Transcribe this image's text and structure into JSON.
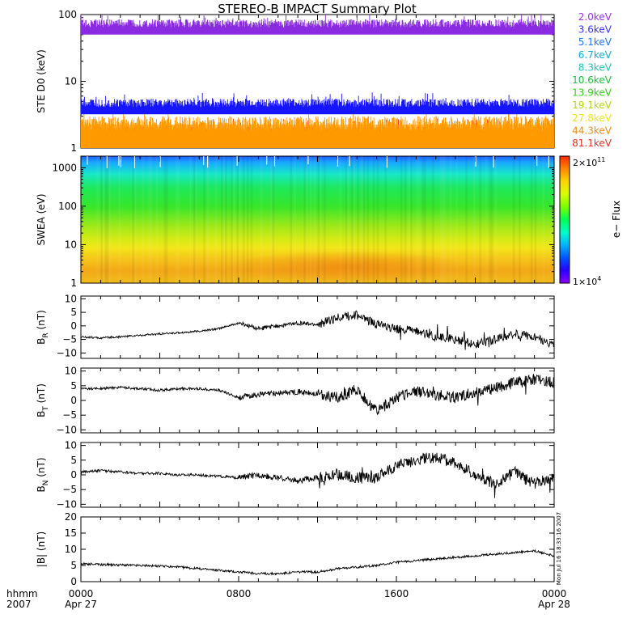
{
  "title": "STEREO-B IMPACT Summary Plot",
  "stamp": "Mon Jul 16 18:33:16 2007",
  "time_axis": {
    "row1_label": "hhmm",
    "row2_label": "2007",
    "ticks": [
      {
        "hour": 0,
        "hhmm": "0000",
        "date": "Apr 27"
      },
      {
        "hour": 8,
        "hhmm": "0800",
        "date": ""
      },
      {
        "hour": 16,
        "hhmm": "1600",
        "date": ""
      },
      {
        "hour": 24,
        "hhmm": "0000",
        "date": "Apr 28"
      }
    ]
  },
  "legend_energies": [
    {
      "label": "2.0keV",
      "color": "#9a2ff0"
    },
    {
      "label": "3.6keV",
      "color": "#3c33e8"
    },
    {
      "label": "5.1keV",
      "color": "#1e78f0"
    },
    {
      "label": "6.7keV",
      "color": "#0fb0d8"
    },
    {
      "label": "8.3keV",
      "color": "#19c9b0"
    },
    {
      "label": "10.6keV",
      "color": "#16c53a"
    },
    {
      "label": "13.9keV",
      "color": "#32d016"
    },
    {
      "label": "19.1keV",
      "color": "#b2d813"
    },
    {
      "label": "27.8keV",
      "color": "#f2e21a"
    },
    {
      "label": "44.3keV",
      "color": "#f28a12"
    },
    {
      "label": "81.1keV",
      "color": "#f03020"
    }
  ],
  "colorbar": {
    "max_label": "2×10",
    "max_exp": "11",
    "min_label": "1×10",
    "min_exp": "4",
    "title": "e− Flux",
    "colors": [
      "#8b00ff",
      "#2a00ff",
      "#0055ff",
      "#00b4ff",
      "#00ffc8",
      "#00ff55",
      "#7aff00",
      "#d8ff00",
      "#ffd500",
      "#ff8800",
      "#ff2a00"
    ]
  },
  "chart_data": [
    {
      "type": "line",
      "panel": "ste",
      "ylabel": "STE D0 (keV)",
      "yscale": "log",
      "ylim": [
        1,
        100
      ],
      "ticks": [
        1,
        10,
        100
      ],
      "tick_labels": [
        "1",
        "10",
        "100"
      ],
      "xlim_hours": [
        0,
        24
      ],
      "series": [
        {
          "name": "2.0keV",
          "typical_low": 50,
          "typical_high": 85,
          "color": "#8a2be2"
        },
        {
          "name": "3.6keV",
          "typical_low": 3.2,
          "typical_high": 5.5,
          "color": "#1515ff"
        },
        {
          "name": "27.8keV",
          "typical_low": 1,
          "typical_high": 3.0,
          "color": "#ff9900"
        },
        {
          "name": "81.1keV",
          "typical_low": 1,
          "typical_high": 2.1,
          "color": "#ff2a00"
        }
      ]
    },
    {
      "type": "heatmap",
      "panel": "swea",
      "ylabel": "SWEA (eV)",
      "yscale": "log",
      "ylim": [
        1,
        2000
      ],
      "ticks": [
        1,
        10,
        100,
        1000
      ],
      "tick_labels": [
        "1",
        "10",
        "100",
        "1000"
      ],
      "xlim_hours": [
        0,
        24
      ]
    },
    {
      "type": "line",
      "panel": "br",
      "ylabel": "B",
      "ylabel_sub": "R",
      "ylabel_unit": " (nT)",
      "ylim": [
        -12,
        11
      ],
      "ticks": [
        -10,
        -5,
        0,
        5,
        10
      ],
      "tick_labels": [
        "−10",
        "−5",
        "0",
        "5",
        "10"
      ],
      "x_hours": [
        0,
        1,
        2,
        3,
        4,
        5,
        6,
        7,
        8,
        9,
        10,
        11,
        12,
        13,
        14,
        15,
        16,
        17,
        18,
        19,
        20,
        21,
        22,
        23,
        24
      ],
      "values": [
        -4,
        -4.5,
        -4,
        -3.5,
        -3,
        -2.5,
        -2,
        -1,
        1,
        -1,
        0,
        1,
        0.5,
        3,
        4,
        0.5,
        -1,
        -2,
        -4,
        -5,
        -7,
        -5,
        -3,
        -4,
        -7
      ]
    },
    {
      "type": "line",
      "panel": "bt",
      "ylabel": "B",
      "ylabel_sub": "T",
      "ylabel_unit": " (nT)",
      "ylim": [
        -11,
        11
      ],
      "ticks": [
        -10,
        -5,
        0,
        5,
        10
      ],
      "tick_labels": [
        "−10",
        "−5",
        "0",
        "5",
        "10"
      ],
      "x_hours": [
        0,
        1,
        2,
        3,
        4,
        5,
        6,
        7,
        8,
        9,
        10,
        11,
        12,
        13,
        14,
        15,
        16,
        17,
        18,
        19,
        20,
        21,
        22,
        23,
        24
      ],
      "values": [
        4,
        4,
        4.5,
        4,
        3.5,
        4,
        4,
        3.5,
        1,
        2,
        2.5,
        3,
        2,
        1,
        4,
        -4,
        1,
        3,
        2,
        1,
        3,
        4,
        6,
        7,
        6
      ]
    },
    {
      "type": "line",
      "panel": "bn",
      "ylabel": "B",
      "ylabel_sub": "N",
      "ylabel_unit": " (nT)",
      "ylim": [
        -11,
        11
      ],
      "ticks": [
        -10,
        -5,
        0,
        5,
        10
      ],
      "tick_labels": [
        "−10",
        "−5",
        "0",
        "5",
        "10"
      ],
      "x_hours": [
        0,
        1,
        2,
        3,
        4,
        5,
        6,
        7,
        8,
        9,
        10,
        11,
        12,
        13,
        14,
        15,
        16,
        17,
        18,
        19,
        20,
        21,
        22,
        23,
        24
      ],
      "values": [
        1,
        1.5,
        1,
        0.5,
        0.5,
        0,
        0,
        -0.5,
        -1,
        0,
        -1,
        -2,
        -1,
        0,
        -1,
        -1,
        3,
        5,
        6,
        4,
        0,
        -3,
        1,
        -3,
        -1
      ]
    },
    {
      "type": "line",
      "panel": "bmag",
      "ylabel": "|B| (nT)",
      "ylim": [
        0,
        20
      ],
      "ticks": [
        0,
        5,
        10,
        15,
        20
      ],
      "tick_labels": [
        "0",
        "5",
        "10",
        "15",
        "20"
      ],
      "x_hours": [
        0,
        1,
        2,
        3,
        4,
        5,
        6,
        7,
        8,
        9,
        10,
        11,
        12,
        13,
        14,
        15,
        16,
        17,
        18,
        19,
        20,
        21,
        22,
        23,
        24
      ],
      "values": [
        5.5,
        5.3,
        5.2,
        5,
        4.8,
        4.5,
        4,
        3.5,
        3,
        2.5,
        2.5,
        3,
        3,
        4,
        4.5,
        5,
        6,
        6.5,
        7,
        7.5,
        8,
        8.5,
        9,
        9.5,
        8
      ]
    }
  ]
}
